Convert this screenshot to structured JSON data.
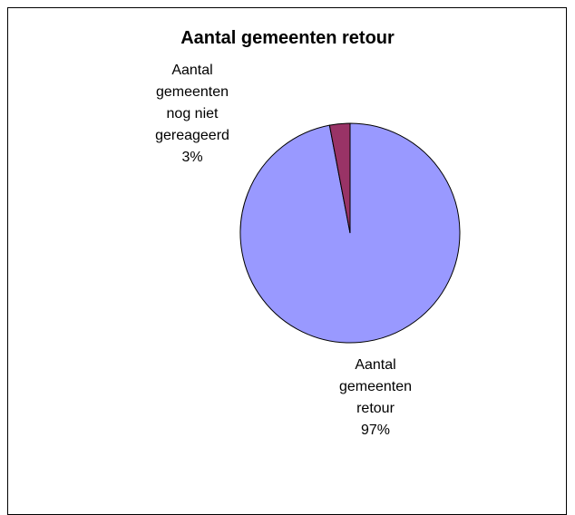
{
  "chart_data": {
    "type": "pie",
    "title": "Aantal gemeenten retour",
    "categories": [
      "Aantal gemeenten retour",
      "Aantal gemeenten nog niet gereageerd"
    ],
    "values": [
      97,
      3
    ],
    "value_labels": [
      "97%",
      "3%"
    ],
    "colors": [
      "#9999ff",
      "#993366"
    ]
  }
}
